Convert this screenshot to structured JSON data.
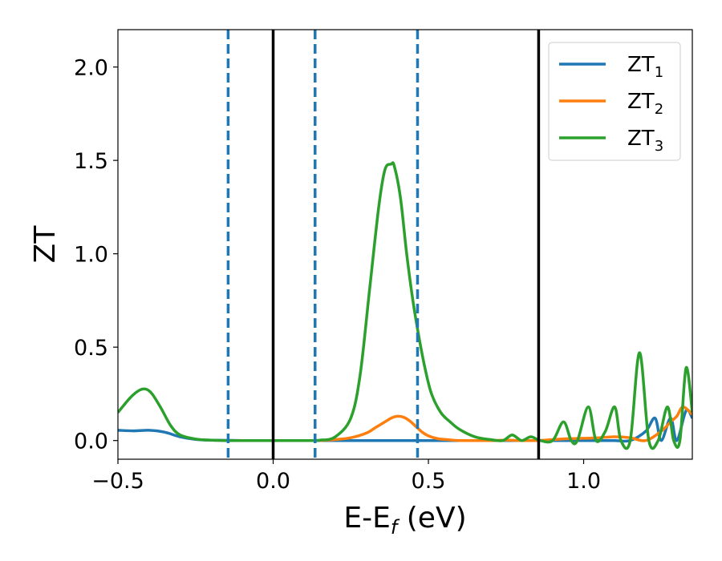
{
  "chart_data": {
    "type": "line",
    "xlabel": "E-E",
    "xlabel_sub": "f",
    "xlabel_unit": " (eV)",
    "ylabel": "ZT",
    "xlim": [
      -0.5,
      1.35
    ],
    "ylim": [
      -0.1,
      2.2
    ],
    "xticks": [
      -0.5,
      0.0,
      0.5,
      1.0
    ],
    "xtick_labels": [
      "−0.5",
      "0.0",
      "0.5",
      "1.0"
    ],
    "yticks": [
      0.0,
      0.5,
      1.0,
      1.5,
      2.0
    ],
    "ytick_labels": [
      "0.0",
      "0.5",
      "1.0",
      "1.5",
      "2.0"
    ],
    "grid": false,
    "legend_position": "top-right",
    "vlines_solid": [
      0.0,
      0.855
    ],
    "vlines_dashed": [
      -0.145,
      0.135,
      0.465
    ],
    "series": [
      {
        "name": "ZT",
        "subscript": "1",
        "color": "#1f77b4",
        "x": [
          -0.5,
          -0.45,
          -0.4,
          -0.35,
          -0.3,
          -0.25,
          -0.2,
          -0.15,
          -0.1,
          0.0,
          0.1,
          0.2,
          0.3,
          0.4,
          0.5,
          0.6,
          0.7,
          0.8,
          0.9,
          1.0,
          1.05,
          1.1,
          1.15,
          1.2,
          1.23,
          1.25,
          1.28,
          1.3,
          1.33,
          1.35
        ],
        "y": [
          0.055,
          0.052,
          0.055,
          0.045,
          0.02,
          0.006,
          0.002,
          0.001,
          0.0,
          0.0,
          0.0,
          0.0,
          0.0,
          0.0,
          0.0,
          0.0,
          0.0,
          0.0,
          0.0,
          0.0,
          0.0,
          0.0,
          0.0,
          0.05,
          0.12,
          0.0,
          0.12,
          0.0,
          0.16,
          0.12
        ]
      },
      {
        "name": "ZT",
        "subscript": "2",
        "color": "#ff7f0e",
        "x": [
          0.15,
          0.2,
          0.25,
          0.3,
          0.33,
          0.36,
          0.38,
          0.4,
          0.42,
          0.44,
          0.46,
          0.48,
          0.5,
          0.53,
          0.56,
          0.6,
          0.65,
          0.7,
          0.75,
          0.8,
          0.85,
          0.9,
          0.95,
          1.0,
          1.05,
          1.1,
          1.15,
          1.2,
          1.25,
          1.28,
          1.3,
          1.32,
          1.35
        ],
        "y": [
          0.0,
          0.005,
          0.015,
          0.04,
          0.07,
          0.1,
          0.12,
          0.13,
          0.125,
          0.105,
          0.075,
          0.045,
          0.025,
          0.01,
          0.005,
          0.0,
          0.0,
          0.0,
          0.002,
          0.0,
          0.0,
          0.005,
          0.01,
          0.012,
          0.015,
          0.02,
          0.015,
          0.0,
          0.05,
          0.1,
          0.13,
          0.18,
          0.14
        ]
      },
      {
        "name": "ZT",
        "subscript": "3",
        "color": "#2ca02c",
        "x": [
          -0.5,
          -0.46,
          -0.43,
          -0.41,
          -0.39,
          -0.36,
          -0.33,
          -0.3,
          -0.25,
          -0.2,
          -0.15,
          -0.1,
          0.0,
          0.1,
          0.15,
          0.2,
          0.25,
          0.28,
          0.31,
          0.34,
          0.36,
          0.38,
          0.39,
          0.41,
          0.43,
          0.45,
          0.47,
          0.49,
          0.51,
          0.54,
          0.57,
          0.6,
          0.65,
          0.7,
          0.74,
          0.77,
          0.8,
          0.83,
          0.86,
          0.9,
          0.935,
          0.96,
          0.98,
          1.015,
          1.04,
          1.07,
          1.1,
          1.12,
          1.15,
          1.18,
          1.21,
          1.24,
          1.27,
          1.29,
          1.31,
          1.33,
          1.35
        ],
        "y": [
          0.15,
          0.23,
          0.27,
          0.275,
          0.25,
          0.17,
          0.08,
          0.03,
          0.008,
          0.002,
          0.0,
          0.0,
          0.0,
          0.0,
          0.002,
          0.02,
          0.12,
          0.35,
          0.8,
          1.25,
          1.45,
          1.48,
          1.47,
          1.3,
          1.0,
          0.75,
          0.55,
          0.38,
          0.25,
          0.15,
          0.1,
          0.06,
          0.02,
          0.005,
          0.0,
          0.03,
          0.0,
          0.02,
          0.0,
          0.0,
          0.1,
          0.0,
          0.0,
          0.18,
          0.0,
          0.05,
          0.18,
          0.0,
          0.0,
          0.47,
          0.0,
          0.0,
          0.18,
          0.0,
          0.0,
          0.39,
          0.15
        ]
      }
    ]
  }
}
